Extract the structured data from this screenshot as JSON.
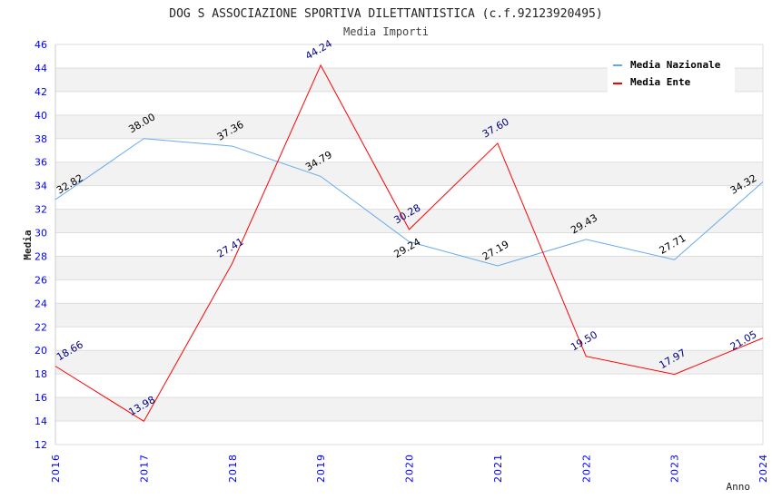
{
  "chart_data": {
    "type": "line",
    "title": "DOG S ASSOCIAZIONE SPORTIVA DILETTANTISTICA (c.f.92123920495)",
    "subtitle": "Media Importi",
    "xlabel": "Anno",
    "ylabel": "Media",
    "ylim": [
      12,
      46
    ],
    "yticks": [
      12,
      14,
      16,
      18,
      20,
      22,
      24,
      26,
      28,
      30,
      32,
      34,
      36,
      38,
      40,
      42,
      44,
      46
    ],
    "categories": [
      "2016",
      "2017",
      "2018",
      "2019",
      "2020",
      "2021",
      "2022",
      "2023",
      "2024"
    ],
    "grid": true,
    "legend_position": "top-right",
    "series": [
      {
        "name": "Media Nazionale",
        "color": "#66aaee",
        "label_color": "#000000",
        "values": [
          32.82,
          38.0,
          37.36,
          34.79,
          29.24,
          27.19,
          29.43,
          27.71,
          34.32
        ],
        "labels": [
          "32.82",
          "38.00",
          "37.36",
          "34.79",
          "29.24",
          "27.19",
          "29.43",
          "27.71",
          "34.32"
        ]
      },
      {
        "name": "Media Ente",
        "color": "#ff0000",
        "label_color": "#000080",
        "values": [
          18.66,
          13.98,
          27.41,
          44.24,
          30.28,
          37.6,
          19.5,
          17.97,
          21.05
        ],
        "labels": [
          "18.66",
          "13.98",
          "27.41",
          "44.24",
          "30.28",
          "37.60",
          "19.50",
          "17.97",
          "21.05"
        ]
      }
    ]
  }
}
